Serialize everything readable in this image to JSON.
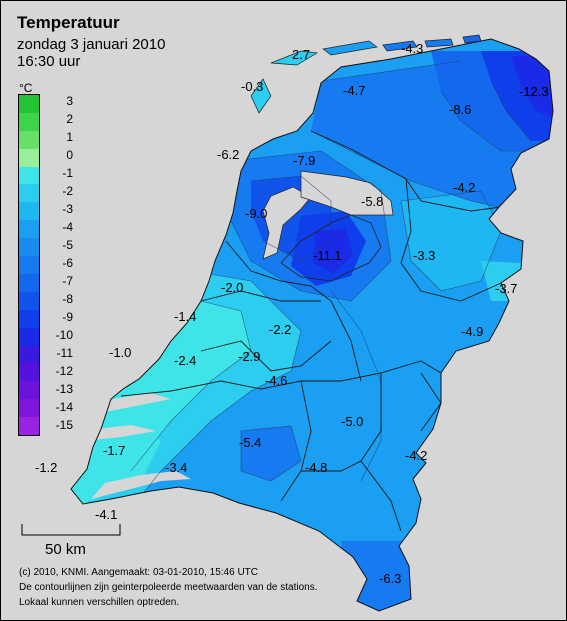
{
  "header": {
    "title": "Temperatuur",
    "date": "zondag 3 januari 2010",
    "time": "16:30 uur"
  },
  "legend": {
    "unit": "°C",
    "labels": [
      "3",
      "2",
      "1",
      "0",
      "-1",
      "-2",
      "-3",
      "-4",
      "-5",
      "-6",
      "-7",
      "-8",
      "-9",
      "-10",
      "-11",
      "-12",
      "-13",
      "-14",
      "-15"
    ],
    "colors": [
      "#22c434",
      "#3ed44a",
      "#66e068",
      "#99ee99",
      "#3fe4e8",
      "#2ccdee",
      "#1fb7f2",
      "#1a9ff2",
      "#188cf0",
      "#167af0",
      "#1368ee",
      "#1154ec",
      "#0e3fea",
      "#1a2ae6",
      "#3a18e0",
      "#5512dc",
      "#6b12dc",
      "#8015dc",
      "#9a22e2"
    ]
  },
  "map": {
    "sea_color": "#d6d6d6",
    "values": [
      {
        "label": "2.7"
      },
      {
        "label": "-4.3"
      },
      {
        "label": "-0.3"
      },
      {
        "label": "-4.7"
      },
      {
        "label": "-12.3"
      },
      {
        "label": "-8.6"
      },
      {
        "label": "-6.2"
      },
      {
        "label": "-7.9"
      },
      {
        "label": "-4.2"
      },
      {
        "label": "-9.0"
      },
      {
        "label": "-5.8"
      },
      {
        "label": "-11.1"
      },
      {
        "label": "-3.3"
      },
      {
        "label": "-3.7"
      },
      {
        "label": "-2.0"
      },
      {
        "label": "-1.4"
      },
      {
        "label": "-2.2"
      },
      {
        "label": "-4.9"
      },
      {
        "label": "-1.0"
      },
      {
        "label": "-2.4"
      },
      {
        "label": "-2.9"
      },
      {
        "label": "-4.6"
      },
      {
        "label": "-5.0"
      },
      {
        "label": "-5.4"
      },
      {
        "label": "-4.2"
      },
      {
        "label": "-1.7"
      },
      {
        "label": "-4.8"
      },
      {
        "label": "-1.2"
      },
      {
        "label": "-3.4"
      },
      {
        "label": "-4.1"
      },
      {
        "label": "-6.3"
      }
    ]
  },
  "scale": {
    "label": "50 km"
  },
  "footer": {
    "line1": "(c) 2010, KNMI. Aangemaakt: 03-01-2010, 15:46 UTC",
    "line2": "De contourlijnen zijn geinterpoleerde meetwaarden van de stations.",
    "line3": "Lokaal kunnen verschillen optreden."
  }
}
